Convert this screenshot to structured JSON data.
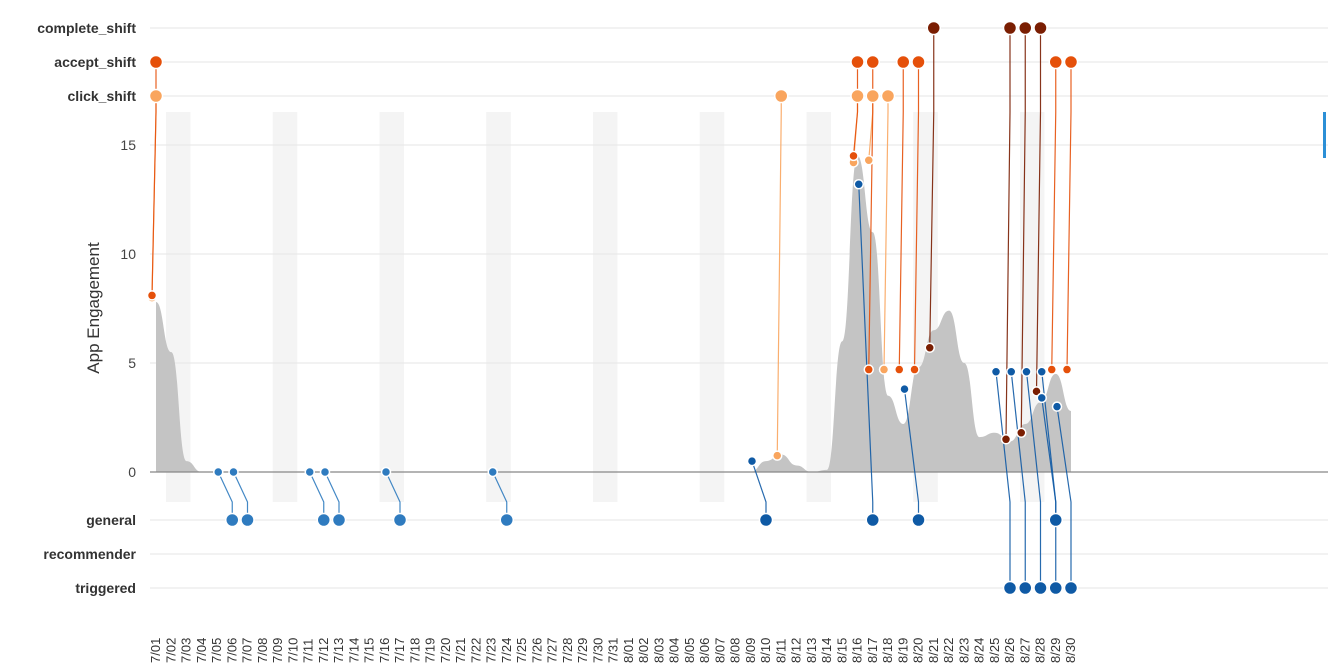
{
  "chart_data": {
    "type": "area",
    "ylabel": "App Engagement",
    "xlabel": "",
    "title": "",
    "ylim": [
      0,
      16
    ],
    "yticks": [
      0,
      5,
      10,
      15
    ],
    "x_dates": [
      "7/01",
      "7/02",
      "7/03",
      "7/04",
      "7/05",
      "7/06",
      "7/07",
      "7/08",
      "7/09",
      "7/10",
      "7/11",
      "7/12",
      "7/13",
      "7/14",
      "7/15",
      "7/16",
      "7/17",
      "7/18",
      "7/19",
      "7/20",
      "7/21",
      "7/22",
      "7/23",
      "7/24",
      "7/25",
      "7/26",
      "7/27",
      "7/28",
      "7/29",
      "7/30",
      "7/31",
      "8/01",
      "8/02",
      "8/03",
      "8/04",
      "8/05",
      "8/06",
      "8/07",
      "8/08",
      "8/09",
      "8/10",
      "8/11",
      "8/12",
      "8/13",
      "8/14",
      "8/15",
      "8/16",
      "8/17",
      "8/18",
      "8/19",
      "8/20",
      "8/21",
      "8/22",
      "8/23",
      "8/24",
      "8/25",
      "8/26",
      "8/27",
      "8/28",
      "8/29",
      "8/30"
    ],
    "weekend_bands": [
      [
        "7/01",
        "7/03"
      ],
      [
        "7/08",
        "7/10"
      ],
      [
        "7/15",
        "7/17"
      ],
      [
        "7/22",
        "7/24"
      ],
      [
        "7/29",
        "7/31"
      ],
      [
        "8/05",
        "8/07"
      ],
      [
        "8/12",
        "8/14"
      ],
      [
        "8/19",
        "8/21"
      ],
      [
        "8/26",
        "8/28"
      ]
    ],
    "engagement_curve": [
      {
        "x": "7/01",
        "y": 7.8
      },
      {
        "x": "7/02",
        "y": 5.5
      },
      {
        "x": "7/03",
        "y": 0.5
      },
      {
        "x": "7/04",
        "y": 0
      },
      {
        "x": "8/09",
        "y": 0
      },
      {
        "x": "8/10",
        "y": 0.5
      },
      {
        "x": "8/11",
        "y": 0.8
      },
      {
        "x": "8/12",
        "y": 0.3
      },
      {
        "x": "8/13",
        "y": 0
      },
      {
        "x": "8/14",
        "y": 0.1
      },
      {
        "x": "8/15",
        "y": 6
      },
      {
        "x": "8/16",
        "y": 14.5
      },
      {
        "x": "8/17",
        "y": 11
      },
      {
        "x": "8/18",
        "y": 3.5
      },
      {
        "x": "8/19",
        "y": 2.2
      },
      {
        "x": "8/20",
        "y": 4.8
      },
      {
        "x": "8/21",
        "y": 6.5
      },
      {
        "x": "8/22",
        "y": 7.4
      },
      {
        "x": "8/23",
        "y": 5
      },
      {
        "x": "8/24",
        "y": 1.6
      },
      {
        "x": "8/25",
        "y": 1.8
      },
      {
        "x": "8/26",
        "y": 1.4
      },
      {
        "x": "8/27",
        "y": 2.2
      },
      {
        "x": "8/28",
        "y": 3.2
      },
      {
        "x": "8/29",
        "y": 4.5
      },
      {
        "x": "8/30",
        "y": 2.8
      }
    ],
    "event_lanes": [
      "complete_shift",
      "accept_shift",
      "click_shift"
    ],
    "message_lanes": [
      "general",
      "recommender",
      "triggered"
    ],
    "colors": {
      "area": "#c4c4c4",
      "axis": "#888888",
      "grid": "#e6e6e6",
      "weekend": "#f4f4f4",
      "complete_shift": "#7a1e02",
      "accept_shift": "#e5500a",
      "click_shift": "#f9a55e",
      "general": "#2f7bbf",
      "general_dark": "#0f5aa5",
      "triggered": "#0f5aa5",
      "side_marker": "#2b8fd6"
    },
    "events": [
      {
        "lane": "click_shift",
        "date": "7/01",
        "y": 8
      },
      {
        "lane": "accept_shift",
        "date": "7/01",
        "y": 8.1
      },
      {
        "lane": "click_shift",
        "date": "8/11",
        "y": 0.75
      },
      {
        "lane": "click_shift",
        "date": "8/16",
        "y": 14.2
      },
      {
        "lane": "click_shift",
        "date": "8/17",
        "y": 14.3
      },
      {
        "lane": "accept_shift",
        "date": "8/16",
        "y": 14.5
      },
      {
        "lane": "click_shift",
        "date": "8/18",
        "y": 4.7
      },
      {
        "lane": "accept_shift",
        "date": "8/17",
        "y": 4.7
      },
      {
        "lane": "accept_shift",
        "date": "8/19",
        "y": 4.7
      },
      {
        "lane": "accept_shift",
        "date": "8/20",
        "y": 4.7
      },
      {
        "lane": "complete_shift",
        "date": "8/21",
        "y": 5.7
      },
      {
        "lane": "complete_shift",
        "date": "8/26",
        "y": 1.5
      },
      {
        "lane": "complete_shift",
        "date": "8/27",
        "y": 1.8
      },
      {
        "lane": "complete_shift",
        "date": "8/28",
        "y": 3.7
      },
      {
        "lane": "accept_shift",
        "date": "8/29",
        "y": 4.7
      },
      {
        "lane": "accept_shift",
        "date": "8/30",
        "y": 4.7
      }
    ],
    "messages": [
      {
        "lane": "general",
        "date": "7/06",
        "y": 0
      },
      {
        "lane": "general",
        "date": "7/07",
        "y": 0
      },
      {
        "lane": "general",
        "date": "7/12",
        "y": 0
      },
      {
        "lane": "general",
        "date": "7/13",
        "y": 0
      },
      {
        "lane": "general",
        "date": "7/17",
        "y": 0
      },
      {
        "lane": "general",
        "date": "7/24",
        "y": 0
      },
      {
        "lane": "general",
        "date": "8/10",
        "y": 0.5,
        "dark": true
      },
      {
        "lane": "general",
        "date": "8/17",
        "y": 13.2,
        "dark": true
      },
      {
        "lane": "general",
        "date": "8/20",
        "y": 3.8,
        "dark": true
      },
      {
        "lane": "general",
        "date": "8/29",
        "y": 3.4,
        "dark": true
      },
      {
        "lane": "triggered",
        "date": "8/26",
        "y": 4.6
      },
      {
        "lane": "triggered",
        "date": "8/27",
        "y": 4.6
      },
      {
        "lane": "triggered",
        "date": "8/28",
        "y": 4.6
      },
      {
        "lane": "triggered",
        "date": "8/29",
        "y": 4.6
      },
      {
        "lane": "triggered",
        "date": "8/30",
        "y": 3
      }
    ]
  }
}
